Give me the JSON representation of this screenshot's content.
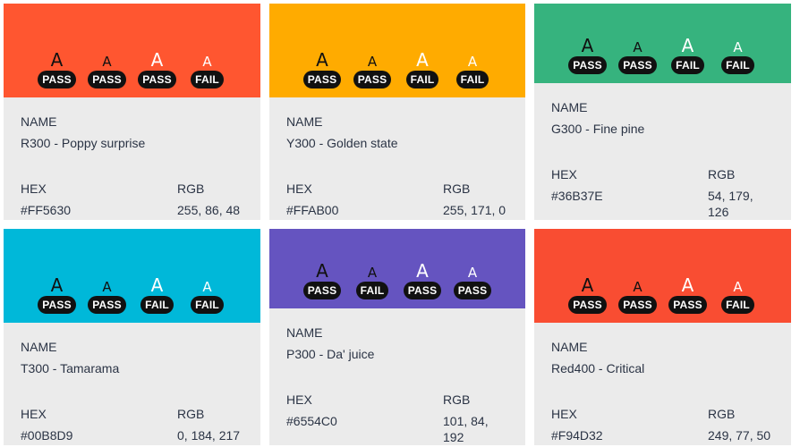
{
  "labels": {
    "name": "NAME",
    "hex": "HEX",
    "rgb": "RGB"
  },
  "cards": [
    {
      "color": "#FF5630",
      "name": "R300 - Poppy surprise",
      "hex": "#FF5630",
      "rgb": "255, 86, 48",
      "samples": [
        {
          "letter": "A",
          "size": "big",
          "tone": "dark",
          "result": "PASS"
        },
        {
          "letter": "A",
          "size": "small",
          "tone": "dark",
          "result": "PASS"
        },
        {
          "letter": "A",
          "size": "big",
          "tone": "light",
          "result": "PASS"
        },
        {
          "letter": "A",
          "size": "small",
          "tone": "light",
          "result": "FAIL"
        }
      ]
    },
    {
      "color": "#FFAB00",
      "name": "Y300 - Golden state",
      "hex": "#FFAB00",
      "rgb": "255, 171, 0",
      "samples": [
        {
          "letter": "A",
          "size": "big",
          "tone": "dark",
          "result": "PASS"
        },
        {
          "letter": "A",
          "size": "small",
          "tone": "dark",
          "result": "PASS"
        },
        {
          "letter": "A",
          "size": "big",
          "tone": "light",
          "result": "FAIL"
        },
        {
          "letter": "A",
          "size": "small",
          "tone": "light",
          "result": "FAIL"
        }
      ]
    },
    {
      "color": "#36B37E",
      "name": "G300 - Fine pine",
      "hex": "#36B37E",
      "rgb": "54, 179, 126",
      "samples": [
        {
          "letter": "A",
          "size": "big",
          "tone": "dark",
          "result": "PASS"
        },
        {
          "letter": "A",
          "size": "small",
          "tone": "dark",
          "result": "PASS"
        },
        {
          "letter": "A",
          "size": "big",
          "tone": "light",
          "result": "FAIL"
        },
        {
          "letter": "A",
          "size": "small",
          "tone": "light",
          "result": "FAIL"
        }
      ]
    },
    {
      "color": "#00B8D9",
      "name": "T300 - Tamarama",
      "hex": "#00B8D9",
      "rgb": "0, 184, 217",
      "samples": [
        {
          "letter": "A",
          "size": "big",
          "tone": "dark",
          "result": "PASS"
        },
        {
          "letter": "A",
          "size": "small",
          "tone": "dark",
          "result": "PASS"
        },
        {
          "letter": "A",
          "size": "big",
          "tone": "light",
          "result": "FAIL"
        },
        {
          "letter": "A",
          "size": "small",
          "tone": "light",
          "result": "FAIL"
        }
      ]
    },
    {
      "color": "#6554C0",
      "name": "P300 - Da' juice",
      "hex": "#6554C0",
      "rgb": "101, 84, 192",
      "samples": [
        {
          "letter": "A",
          "size": "big",
          "tone": "dark",
          "result": "PASS"
        },
        {
          "letter": "A",
          "size": "small",
          "tone": "dark",
          "result": "FAIL"
        },
        {
          "letter": "A",
          "size": "big",
          "tone": "light",
          "result": "PASS"
        },
        {
          "letter": "A",
          "size": "small",
          "tone": "light",
          "result": "PASS"
        }
      ]
    },
    {
      "color": "#F94D32",
      "name": "Red400 - Critical",
      "hex": "#F94D32",
      "rgb": "249, 77, 50",
      "samples": [
        {
          "letter": "A",
          "size": "big",
          "tone": "dark",
          "result": "PASS"
        },
        {
          "letter": "A",
          "size": "small",
          "tone": "dark",
          "result": "PASS"
        },
        {
          "letter": "A",
          "size": "big",
          "tone": "light",
          "result": "PASS"
        },
        {
          "letter": "A",
          "size": "small",
          "tone": "light",
          "result": "FAIL"
        }
      ]
    }
  ]
}
